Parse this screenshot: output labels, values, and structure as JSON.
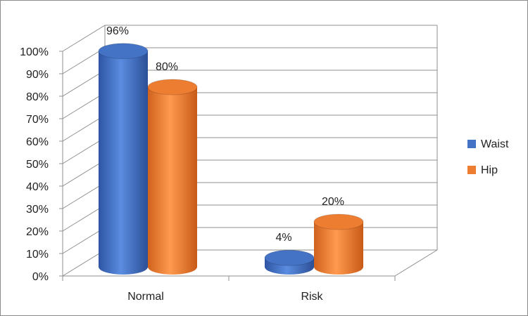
{
  "chart_data": {
    "type": "bar",
    "style": "3d-cylinder",
    "categories": [
      "Normal",
      "Risk"
    ],
    "series": [
      {
        "name": "Waist",
        "values": [
          96,
          4
        ],
        "labels": [
          "96%",
          "4%"
        ],
        "color": "#4472C4"
      },
      {
        "name": "Hip",
        "values": [
          80,
          20
        ],
        "labels": [
          "80%",
          "20%"
        ],
        "color": "#ED7D31"
      }
    ],
    "y_ticks": [
      "0%",
      "10%",
      "20%",
      "30%",
      "40%",
      "50%",
      "60%",
      "70%",
      "80%",
      "90%",
      "100%"
    ],
    "ylim": [
      0,
      100
    ],
    "grid": true,
    "legend_position": "right"
  }
}
